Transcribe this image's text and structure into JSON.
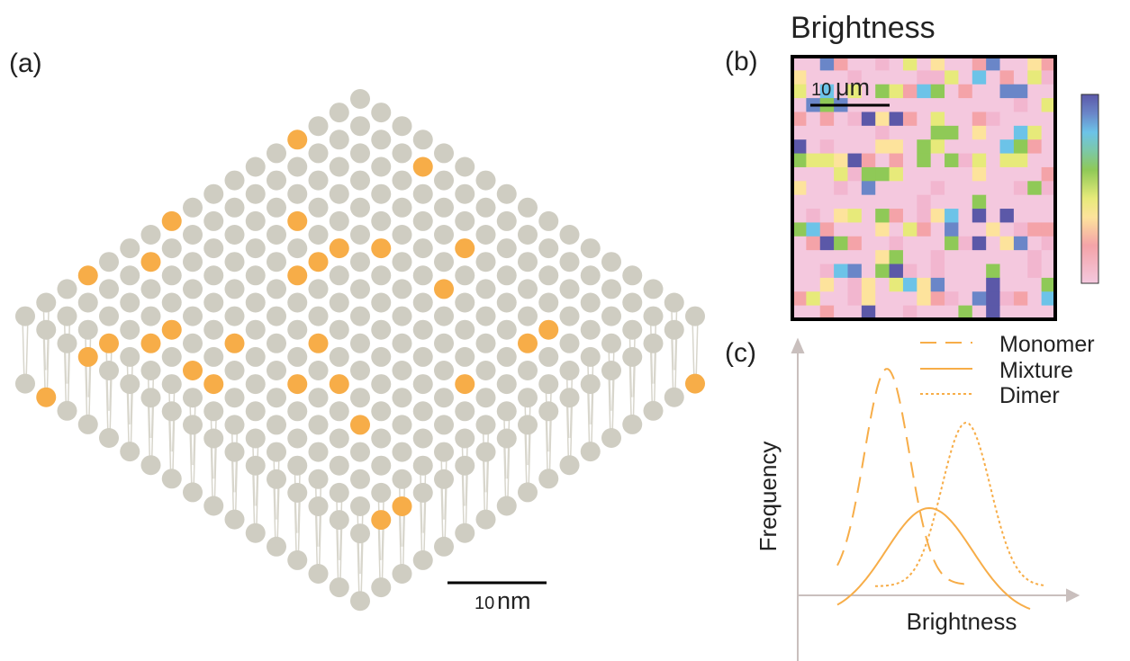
{
  "panel_a": {
    "label": "(a)",
    "scale_bar": {
      "number": "10",
      "unit": "nm"
    }
  },
  "panel_b": {
    "label": "(b)",
    "title": "Brightness",
    "scale_bar": {
      "number": "10",
      "unit": "μm"
    }
  },
  "panel_c": {
    "label": "(c)",
    "x_label": "Brightness",
    "y_label": "Frequency",
    "legend": [
      "Monomer",
      "Mixture",
      "Dimer"
    ]
  }
}
